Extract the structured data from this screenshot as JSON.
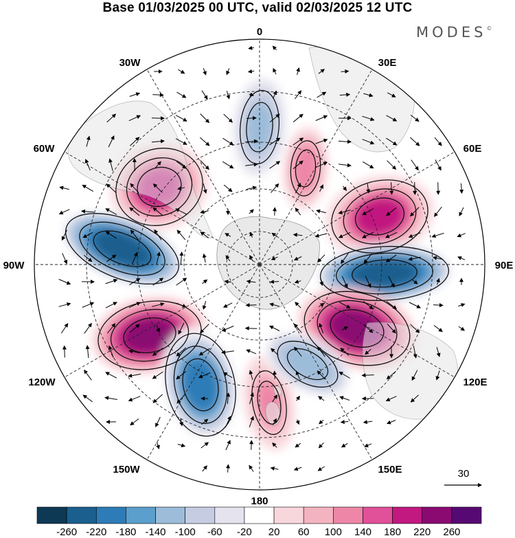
{
  "title": "Base 01/03/2025 00 UTC, valid 02/03/2025 12 UTC",
  "brand": "MODES",
  "brand_mark": "©",
  "longitude_labels": {
    "top": "0",
    "top_right": "30E",
    "upper_right": "60E",
    "right": "90E",
    "lower_right": "120E",
    "bottom_right": "150E",
    "bottom": "180",
    "bottom_left": "150W",
    "lower_left": "120W",
    "left": "90W",
    "upper_left": "60W",
    "top_left": "30W"
  },
  "wind_reference": {
    "value": "30",
    "icon": "arrow-right-icon"
  },
  "colorbar": {
    "colors": [
      "#0e3954",
      "#1a5f8e",
      "#2d7cb7",
      "#5b9fcc",
      "#9cbcd9",
      "#c6cde2",
      "#e4e3ee",
      "#ffffff",
      "#f8d7dc",
      "#f4b3c0",
      "#ee86a7",
      "#e0519a",
      "#c1197f",
      "#8a0a72",
      "#560972"
    ],
    "tick_labels": [
      "-260",
      "-220",
      "-180",
      "-140",
      "-100",
      "-60",
      "-20",
      "20",
      "60",
      "100",
      "140",
      "180",
      "220",
      "260"
    ]
  },
  "anomaly_centers": [
    {
      "label": "positive-anomaly-60w",
      "value": 200
    },
    {
      "label": "negative-anomaly-90w",
      "value": -260
    },
    {
      "label": "positive-anomaly-120w",
      "value": 240
    },
    {
      "label": "negative-anomaly-150w",
      "value": -200
    },
    {
      "label": "positive-anomaly-180",
      "value": 100
    },
    {
      "label": "negative-anomaly-0",
      "value": -120
    },
    {
      "label": "positive-anomaly-30e",
      "value": 120
    },
    {
      "label": "positive-anomaly-60e",
      "value": 180
    },
    {
      "label": "negative-anomaly-90e",
      "value": -260
    },
    {
      "label": "positive-anomaly-120e",
      "value": 240
    },
    {
      "label": "negative-anomaly-150e",
      "value": -140
    }
  ]
}
